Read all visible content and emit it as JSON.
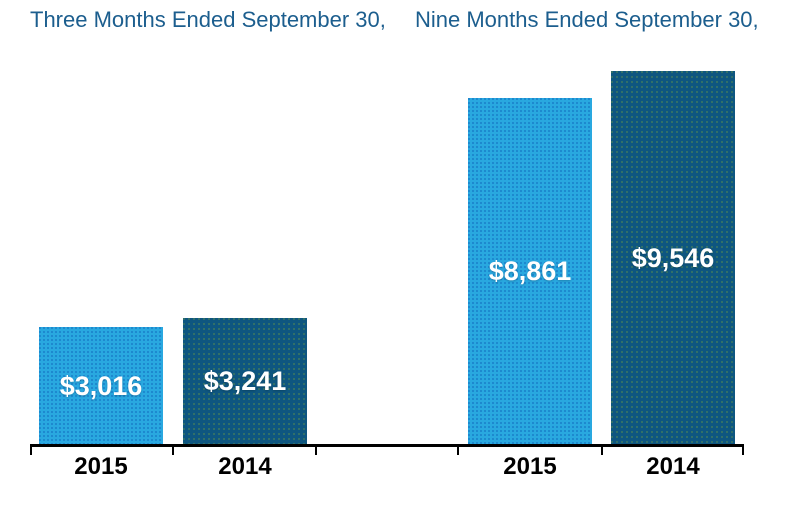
{
  "chart_data": {
    "type": "bar",
    "groups": [
      {
        "title": "Three Months Ended September 30,",
        "bars": [
          {
            "year": "2015",
            "value": 3016,
            "label": "$3,016"
          },
          {
            "year": "2014",
            "value": 3241,
            "label": "$3,241"
          }
        ]
      },
      {
        "title": "Nine Months Ended September 30,",
        "bars": [
          {
            "year": "2015",
            "value": 8861,
            "label": "$8,861"
          },
          {
            "year": "2014",
            "value": 9546,
            "label": "$9,546"
          }
        ]
      }
    ],
    "series_colors": {
      "2015": "#29A8E0",
      "2014": "#0E5680"
    },
    "title_color": "#1C5E8E",
    "value_label_color": "#FFFFFF",
    "axis_label_color": "#000000",
    "axis_color": "#000000",
    "ylim": [
      0,
      9546
    ],
    "grid": false,
    "legend": "none",
    "value_labels_position": "inside-center",
    "units": "USD thousands (as shown)"
  }
}
